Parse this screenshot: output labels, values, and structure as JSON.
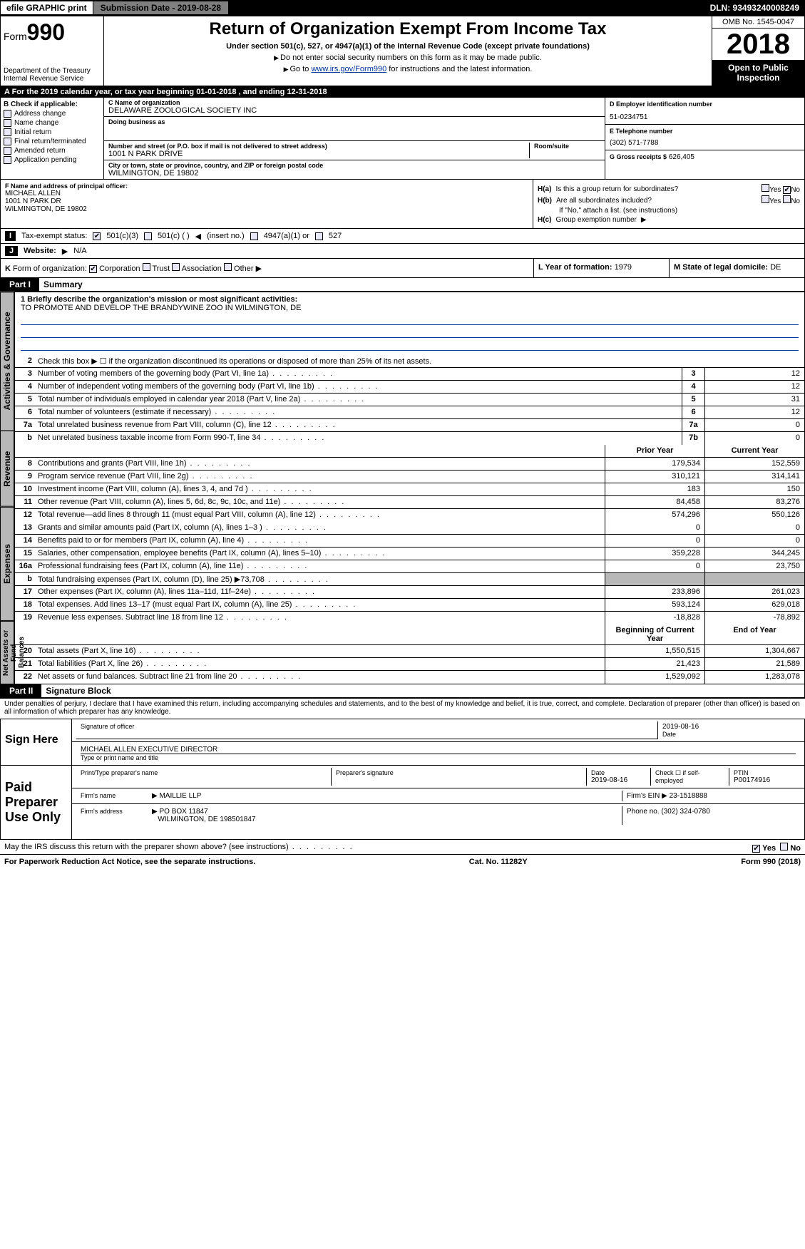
{
  "topbar": {
    "efile": "efile GRAPHIC print",
    "submission": "Submission Date - 2019-08-28",
    "dln": "DLN: 93493240008249"
  },
  "header": {
    "form_prefix": "Form",
    "form_num": "990",
    "dept1": "Department of the Treasury",
    "dept2": "Internal Revenue Service",
    "title": "Return of Organization Exempt From Income Tax",
    "sub1": "Under section 501(c), 527, or 4947(a)(1) of the Internal Revenue Code (except private foundations)",
    "sub2": "Do not enter social security numbers on this form as it may be made public.",
    "sub3_pre": "Go to ",
    "sub3_link": "www.irs.gov/Form990",
    "sub3_post": " for instructions and the latest information.",
    "omb": "OMB No. 1545-0047",
    "year": "2018",
    "open": "Open to Public Inspection"
  },
  "rowA": {
    "text": "A   For the 2019 calendar year, or tax year beginning 01-01-2018     , and ending 12-31-2018"
  },
  "colB": {
    "title": "B Check if applicable:",
    "items": [
      "Address change",
      "Name change",
      "Initial return",
      "Final return/terminated",
      "Amended return",
      "Application pending"
    ]
  },
  "colC": {
    "name_lbl": "C Name of organization",
    "name": "DELAWARE ZOOLOGICAL SOCIETY INC",
    "dba_lbl": "Doing business as",
    "dba": "",
    "addr_lbl": "Number and street (or P.O. box if mail is not delivered to street address)",
    "room_lbl": "Room/suite",
    "addr": "1001 N PARK DRIVE",
    "city_lbl": "City or town, state or province, country, and ZIP or foreign postal code",
    "city": "WILMINGTON, DE  19802"
  },
  "colD": {
    "ein_lbl": "D Employer identification number",
    "ein": "51-0234751",
    "tel_lbl": "E Telephone number",
    "tel": "(302) 571-7788",
    "gross_lbl": "G Gross receipts $",
    "gross": "626,405"
  },
  "fh": {
    "f_lbl": "F Name and address of principal officer:",
    "f_name": "MICHAEL ALLEN",
    "f_addr1": "1001 N PARK DR",
    "f_addr2": "WILMINGTON, DE  19802",
    "ha": "H(a)",
    "ha_txt": "Is this a group return for subordinates?",
    "hb": "H(b)",
    "hb_txt": "Are all subordinates included?",
    "hb_note": "If \"No,\" attach a list. (see instructions)",
    "hc": "H(c)",
    "hc_txt": "Group exemption number",
    "yes": "Yes",
    "no": "No"
  },
  "rowI": {
    "lab": "I",
    "txt": "Tax-exempt status:",
    "o1": "501(c)(3)",
    "o2": "501(c) (  )",
    "o2b": "(insert no.)",
    "o3": "4947(a)(1) or",
    "o4": "527"
  },
  "rowJ": {
    "lab": "J",
    "txt": "Website:",
    "val": "N/A"
  },
  "rowK": {
    "lab": "K",
    "txt": "Form of organization:",
    "o1": "Corporation",
    "o2": "Trust",
    "o3": "Association",
    "o4": "Other"
  },
  "rowL": {
    "l_lbl": "L Year of formation:",
    "l_val": "1979",
    "m_lbl": "M State of legal domicile:",
    "m_val": "DE"
  },
  "part1": {
    "hdr": "Part I",
    "title": "Summary",
    "tabs": [
      "Activities & Governance",
      "Revenue",
      "Expenses",
      "Net Assets or Fund Balances"
    ],
    "line1_lbl": "1  Briefly describe the organization's mission or most significant activities:",
    "line1_txt": "TO PROMOTE AND DEVELOP THE BRANDYWINE ZOO IN WILMINGTON, DE",
    "line2": "Check this box ▶ ☐ if the organization discontinued its operations or disposed of more than 25% of its net assets.",
    "prior": "Prior Year",
    "current": "Current Year",
    "begin": "Beginning of Current Year",
    "end": "End of Year",
    "gov": [
      {
        "n": "3",
        "t": "Number of voting members of the governing body (Part VI, line 1a)",
        "b": "3",
        "v": "12"
      },
      {
        "n": "4",
        "t": "Number of independent voting members of the governing body (Part VI, line 1b)",
        "b": "4",
        "v": "12"
      },
      {
        "n": "5",
        "t": "Total number of individuals employed in calendar year 2018 (Part V, line 2a)",
        "b": "5",
        "v": "31"
      },
      {
        "n": "6",
        "t": "Total number of volunteers (estimate if necessary)",
        "b": "6",
        "v": "12"
      },
      {
        "n": "7a",
        "t": "Total unrelated business revenue from Part VIII, column (C), line 12",
        "b": "7a",
        "v": "0"
      },
      {
        "n": "b",
        "t": "Net unrelated business taxable income from Form 990-T, line 34",
        "b": "7b",
        "v": "0"
      }
    ],
    "rev": [
      {
        "n": "8",
        "t": "Contributions and grants (Part VIII, line 1h)",
        "p": "179,534",
        "c": "152,559"
      },
      {
        "n": "9",
        "t": "Program service revenue (Part VIII, line 2g)",
        "p": "310,121",
        "c": "314,141"
      },
      {
        "n": "10",
        "t": "Investment income (Part VIII, column (A), lines 3, 4, and 7d )",
        "p": "183",
        "c": "150"
      },
      {
        "n": "11",
        "t": "Other revenue (Part VIII, column (A), lines 5, 6d, 8c, 9c, 10c, and 11e)",
        "p": "84,458",
        "c": "83,276"
      },
      {
        "n": "12",
        "t": "Total revenue—add lines 8 through 11 (must equal Part VIII, column (A), line 12)",
        "p": "574,296",
        "c": "550,126"
      }
    ],
    "exp": [
      {
        "n": "13",
        "t": "Grants and similar amounts paid (Part IX, column (A), lines 1–3 )",
        "p": "0",
        "c": "0"
      },
      {
        "n": "14",
        "t": "Benefits paid to or for members (Part IX, column (A), line 4)",
        "p": "0",
        "c": "0"
      },
      {
        "n": "15",
        "t": "Salaries, other compensation, employee benefits (Part IX, column (A), lines 5–10)",
        "p": "359,228",
        "c": "344,245"
      },
      {
        "n": "16a",
        "t": "Professional fundraising fees (Part IX, column (A), line 11e)",
        "p": "0",
        "c": "23,750"
      },
      {
        "n": "b",
        "t": "Total fundraising expenses (Part IX, column (D), line 25) ▶73,708",
        "p": "",
        "c": "",
        "gray": true
      },
      {
        "n": "17",
        "t": "Other expenses (Part IX, column (A), lines 11a–11d, 11f–24e)",
        "p": "233,896",
        "c": "261,023"
      },
      {
        "n": "18",
        "t": "Total expenses. Add lines 13–17 (must equal Part IX, column (A), line 25)",
        "p": "593,124",
        "c": "629,018"
      },
      {
        "n": "19",
        "t": "Revenue less expenses. Subtract line 18 from line 12",
        "p": "-18,828",
        "c": "-78,892"
      }
    ],
    "net": [
      {
        "n": "20",
        "t": "Total assets (Part X, line 16)",
        "p": "1,550,515",
        "c": "1,304,667"
      },
      {
        "n": "21",
        "t": "Total liabilities (Part X, line 26)",
        "p": "21,423",
        "c": "21,589"
      },
      {
        "n": "22",
        "t": "Net assets or fund balances. Subtract line 21 from line 20",
        "p": "1,529,092",
        "c": "1,283,078"
      }
    ]
  },
  "part2": {
    "hdr": "Part II",
    "title": "Signature Block",
    "perjury": "Under penalties of perjury, I declare that I have examined this return, including accompanying schedules and statements, and to the best of my knowledge and belief, it is true, correct, and complete. Declaration of preparer (other than officer) is based on all information of which preparer has any knowledge.",
    "sign_here": "Sign Here",
    "sig_officer": "Signature of officer",
    "sig_date": "2019-08-16",
    "date_lbl": "Date",
    "name_title": "MICHAEL ALLEN  EXECUTIVE DIRECTOR",
    "name_title_lbl": "Type or print name and title",
    "paid": "Paid Preparer Use Only",
    "prep_name_lbl": "Print/Type preparer's name",
    "prep_sig_lbl": "Preparer's signature",
    "prep_date_lbl": "Date",
    "prep_date": "2019-08-16",
    "check_self": "Check ☐ if self-employed",
    "ptin_lbl": "PTIN",
    "ptin": "P00174916",
    "firm_name_lbl": "Firm's name",
    "firm_name": "MAILLIE LLP",
    "firm_ein_lbl": "Firm's EIN",
    "firm_ein": "23-1518888",
    "firm_addr_lbl": "Firm's address",
    "firm_addr1": "PO BOX 11847",
    "firm_addr2": "WILMINGTON, DE  198501847",
    "phone_lbl": "Phone no.",
    "phone": "(302) 324-0780",
    "discuss": "May the IRS discuss this return with the preparer shown above? (see instructions)"
  },
  "foot": {
    "left": "For Paperwork Reduction Act Notice, see the separate instructions.",
    "mid": "Cat. No. 11282Y",
    "right": "Form 990 (2018)"
  }
}
